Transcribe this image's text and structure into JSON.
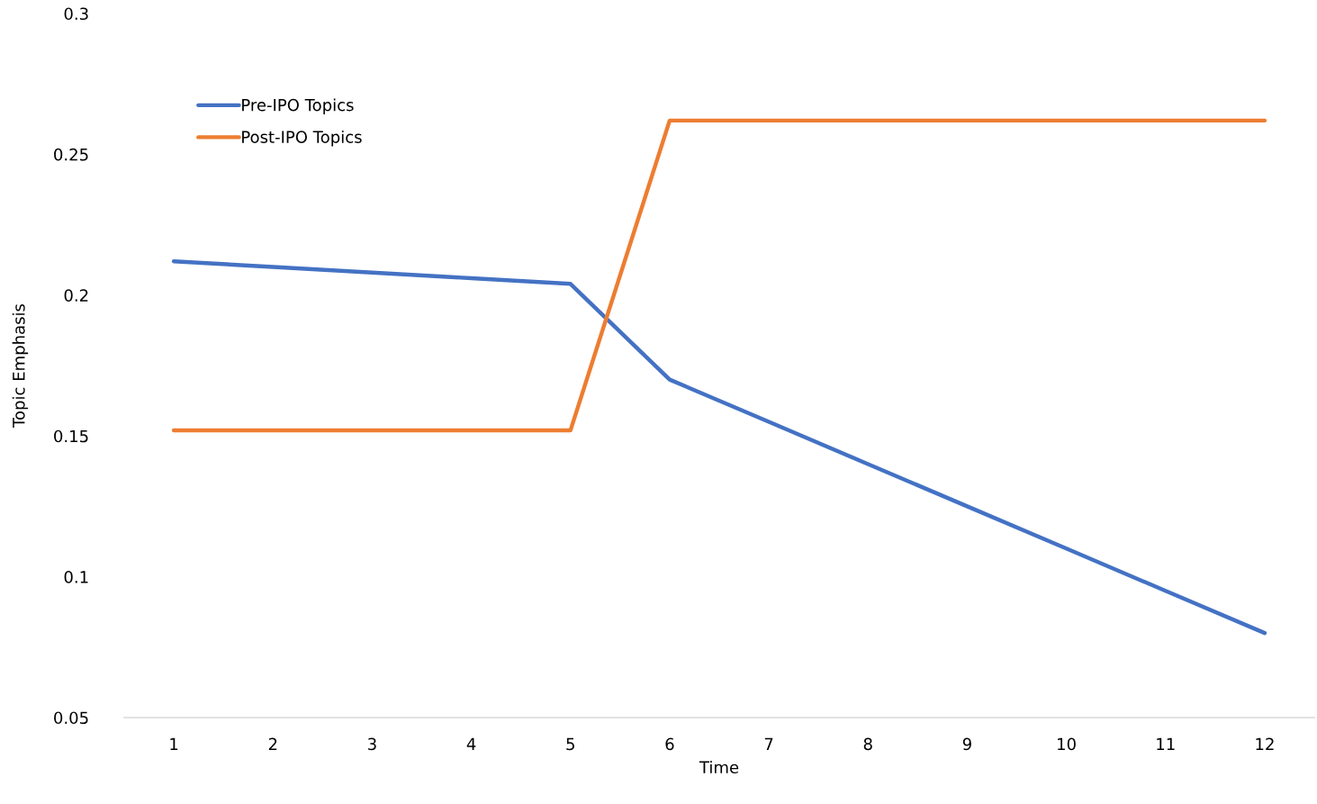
{
  "chart_data": {
    "type": "line",
    "xlabel": "Time",
    "ylabel": "Topic Emphasis",
    "categories": [
      "1",
      "2",
      "3",
      "4",
      "5",
      "6",
      "7",
      "8",
      "9",
      "10",
      "11",
      "12"
    ],
    "series": [
      {
        "name": "Pre-IPO Topics",
        "color": "#4472c4",
        "values": [
          0.212,
          0.21,
          0.208,
          0.206,
          0.204,
          0.17,
          0.155,
          0.14,
          0.125,
          0.11,
          0.095,
          0.08
        ]
      },
      {
        "name": "Post-IPO Topics",
        "color": "#ed7d31",
        "values": [
          0.152,
          0.152,
          0.152,
          0.152,
          0.152,
          0.262,
          0.262,
          0.262,
          0.262,
          0.262,
          0.262,
          0.262
        ]
      }
    ],
    "ylim": [
      0.05,
      0.3
    ],
    "yticks": [
      0.05,
      0.1,
      0.15,
      0.2,
      0.25,
      0.3
    ],
    "grid": false,
    "legend": "top left",
    "marker": "none",
    "line_style": "solid"
  }
}
